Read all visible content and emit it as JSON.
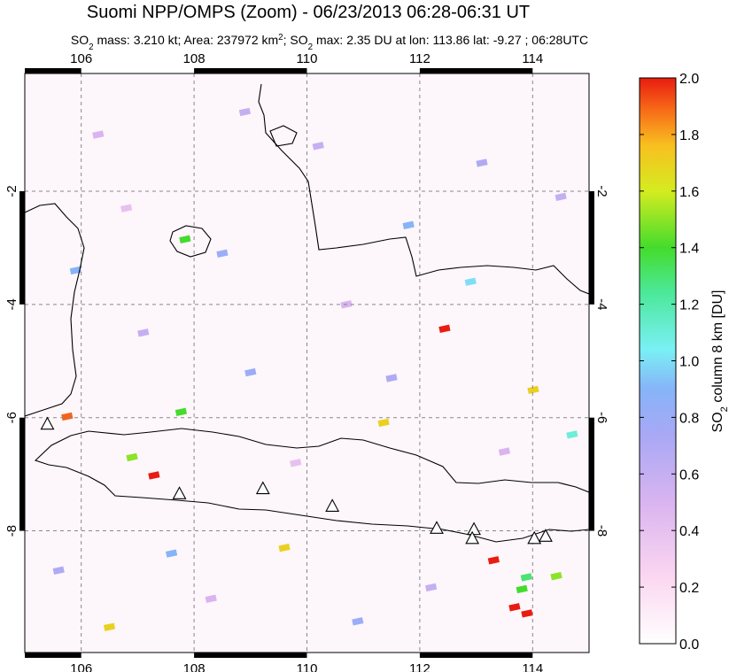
{
  "map": {
    "title": "Suomi NPP/OMPS (Zoom) - 06/23/2013 06:28-06:31 UT",
    "subtitle_parts": [
      {
        "text": "SO"
      },
      {
        "text": "2",
        "script": "sub"
      },
      {
        "text": " mass: 3.210 kt; Area: 237972 km"
      },
      {
        "text": "2",
        "script": "sup"
      },
      {
        "text": "; SO"
      },
      {
        "text": "2",
        "script": "sub"
      },
      {
        "text": " max: 2.35 DU at lon: 113.86 lat: -9.27 ; 06:28UTC"
      }
    ],
    "xlim": [
      105.0,
      115.0
    ],
    "ylim": [
      -10.15,
      0.08
    ],
    "xticks": [
      106,
      108,
      110,
      112,
      114
    ],
    "yticks": [
      -2,
      -4,
      -6,
      -8
    ],
    "grid": true,
    "volcanoes": [
      {
        "lon": 105.4,
        "lat": -6.11
      },
      {
        "lon": 107.74,
        "lat": -7.34
      },
      {
        "lon": 109.22,
        "lat": -7.25
      },
      {
        "lon": 110.45,
        "lat": -7.56
      },
      {
        "lon": 112.3,
        "lat": -7.95
      },
      {
        "lon": 112.96,
        "lat": -7.97
      },
      {
        "lon": 112.93,
        "lat": -8.13
      },
      {
        "lon": 114.03,
        "lat": -8.13
      },
      {
        "lon": 114.23,
        "lat": -8.09
      }
    ],
    "pixels": [
      {
        "lon": 112.44,
        "lat": -4.43,
        "value": 2.0
      },
      {
        "lon": 107.29,
        "lat": -7.02,
        "value": 2.0
      },
      {
        "lon": 105.75,
        "lat": -5.98,
        "value": 1.9
      },
      {
        "lon": 113.31,
        "lat": -8.52,
        "value": 2.0
      },
      {
        "lon": 113.68,
        "lat": -9.35,
        "value": 2.0
      },
      {
        "lon": 113.9,
        "lat": -9.46,
        "value": 2.0
      },
      {
        "lon": 113.81,
        "lat": -9.03,
        "value": 1.4
      },
      {
        "lon": 114.42,
        "lat": -8.8,
        "value": 1.5
      },
      {
        "lon": 114.01,
        "lat": -5.51,
        "value": 1.7
      },
      {
        "lon": 109.6,
        "lat": -8.3,
        "value": 1.7
      },
      {
        "lon": 106.5,
        "lat": -9.7,
        "value": 1.7
      },
      {
        "lon": 107.84,
        "lat": -2.85,
        "value": 1.4
      },
      {
        "lon": 107.77,
        "lat": -5.9,
        "value": 1.4
      },
      {
        "lon": 111.36,
        "lat": -6.09,
        "value": 1.7
      },
      {
        "lon": 113.89,
        "lat": -8.82,
        "value": 1.3
      },
      {
        "lon": 106.9,
        "lat": -6.7,
        "value": 1.5
      },
      {
        "lon": 108.5,
        "lat": -3.1,
        "value": 0.8
      },
      {
        "lon": 110.2,
        "lat": -1.2,
        "value": 0.6
      },
      {
        "lon": 111.8,
        "lat": -2.6,
        "value": 0.9
      },
      {
        "lon": 113.1,
        "lat": -1.5,
        "value": 0.7
      },
      {
        "lon": 106.3,
        "lat": -1.0,
        "value": 0.5
      },
      {
        "lon": 107.1,
        "lat": -4.5,
        "value": 0.6
      },
      {
        "lon": 109.0,
        "lat": -5.2,
        "value": 0.8
      },
      {
        "lon": 110.7,
        "lat": -4.0,
        "value": 0.5
      },
      {
        "lon": 112.9,
        "lat": -3.6,
        "value": 1.0
      },
      {
        "lon": 114.5,
        "lat": -2.1,
        "value": 0.6
      },
      {
        "lon": 105.6,
        "lat": -8.7,
        "value": 0.7
      },
      {
        "lon": 108.3,
        "lat": -9.2,
        "value": 0.5
      },
      {
        "lon": 110.9,
        "lat": -9.6,
        "value": 0.8
      },
      {
        "lon": 112.2,
        "lat": -9.0,
        "value": 0.6
      },
      {
        "lon": 105.9,
        "lat": -3.4,
        "value": 0.9
      },
      {
        "lon": 109.8,
        "lat": -6.8,
        "value": 0.4
      },
      {
        "lon": 111.5,
        "lat": -5.3,
        "value": 0.7
      },
      {
        "lon": 114.7,
        "lat": -6.3,
        "value": 1.1
      },
      {
        "lon": 106.8,
        "lat": -2.3,
        "value": 0.4
      },
      {
        "lon": 108.9,
        "lat": -0.6,
        "value": 0.6
      },
      {
        "lon": 113.5,
        "lat": -6.6,
        "value": 0.5
      },
      {
        "lon": 107.6,
        "lat": -8.4,
        "value": 0.9
      }
    ],
    "colorbar": {
      "label_parts": [
        {
          "text": "SO"
        },
        {
          "text": "2",
          "script": "sub"
        },
        {
          "text": " column 8 km [DU]"
        }
      ],
      "lim": [
        0.0,
        2.0
      ],
      "ticks": [
        {
          "value": 0.0,
          "label": "0.0"
        },
        {
          "value": 0.2,
          "label": "0.2"
        },
        {
          "value": 0.4,
          "label": "0.4"
        },
        {
          "value": 0.6,
          "label": "0.6"
        },
        {
          "value": 0.8,
          "label": "0.8"
        },
        {
          "value": 1.0,
          "label": "1.0"
        },
        {
          "value": 1.2,
          "label": "1.2"
        },
        {
          "value": 1.4,
          "label": "1.4"
        },
        {
          "value": 1.6,
          "label": "1.6"
        },
        {
          "value": 1.8,
          "label": "1.8"
        },
        {
          "value": 2.0,
          "label": "2.0"
        }
      ]
    }
  }
}
